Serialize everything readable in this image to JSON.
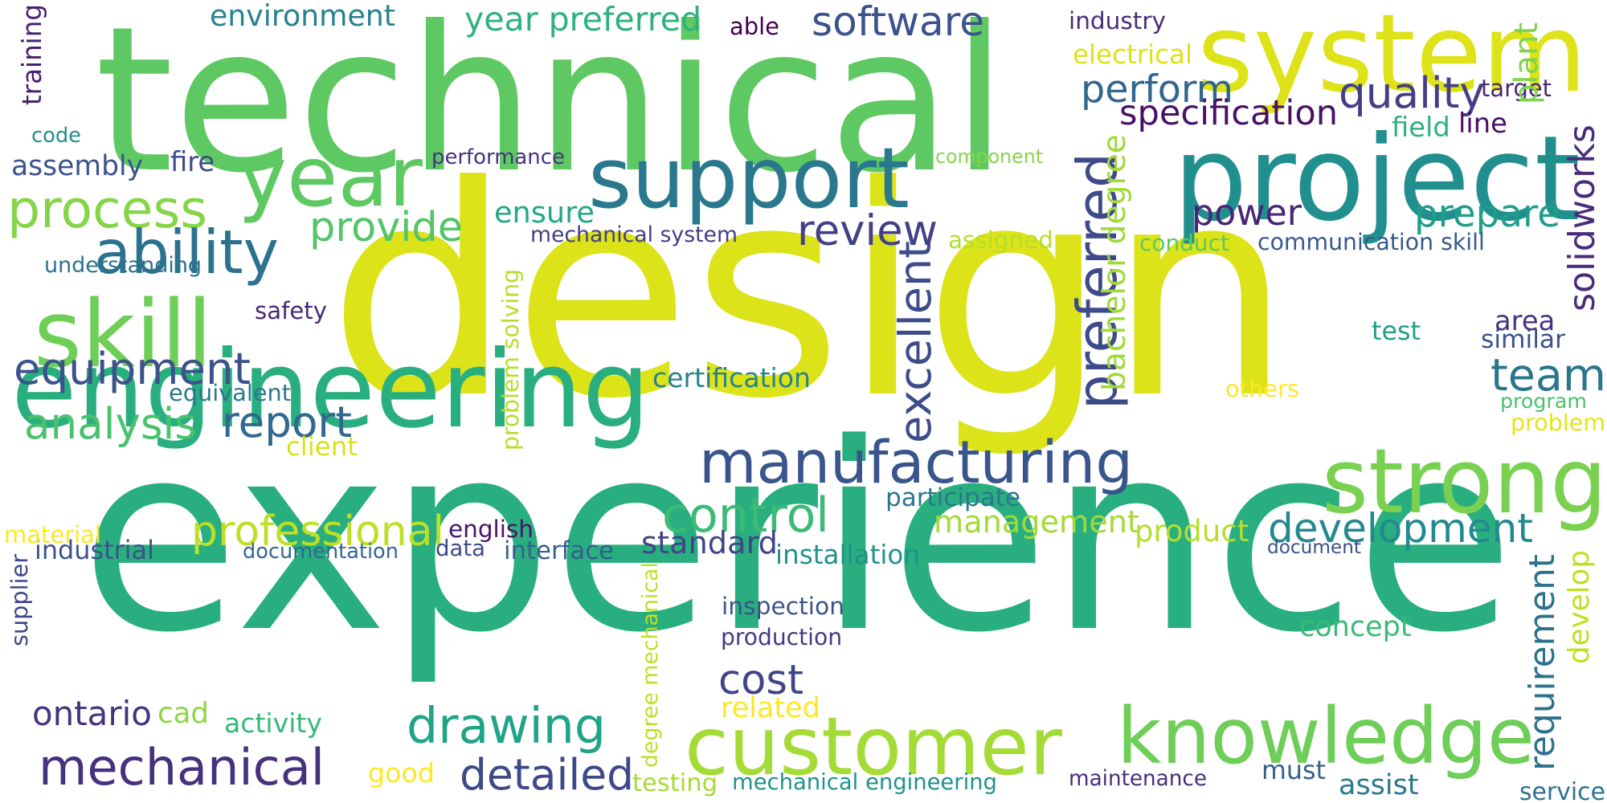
{
  "words": [
    {
      "text": "design",
      "color": "#dce319"
    },
    {
      "text": "experience",
      "color": "#29af7f"
    },
    {
      "text": "technical",
      "color": "#5ec962"
    },
    {
      "text": "engineering",
      "color": "#29af7f"
    },
    {
      "text": "project",
      "color": "#218f8d"
    },
    {
      "text": "system",
      "color": "#dde318"
    },
    {
      "text": "support",
      "color": "#2a788e"
    },
    {
      "text": "customer",
      "color": "#a5db36"
    },
    {
      "text": "knowledge",
      "color": "#6ece58"
    },
    {
      "text": "strong",
      "color": "#7ad151"
    },
    {
      "text": "manufacturing",
      "color": "#39558c"
    },
    {
      "text": "year",
      "color": "#5ec962"
    },
    {
      "text": "skill",
      "color": "#6ece58"
    },
    {
      "text": "mechanical",
      "color": "#46317e"
    },
    {
      "text": "process",
      "color": "#86d549"
    },
    {
      "text": "ability",
      "color": "#2c728e"
    },
    {
      "text": "equipment",
      "color": "#3b528b"
    },
    {
      "text": "preferred",
      "color": "#3e4a89"
    },
    {
      "text": "development",
      "color": "#23898e"
    },
    {
      "text": "solidworks",
      "color": "#472d7b"
    },
    {
      "text": "drawing",
      "color": "#20a486"
    },
    {
      "text": "excellent",
      "color": "#3e4c8a"
    },
    {
      "text": "professional",
      "color": "#bddf26"
    },
    {
      "text": "management",
      "color": "#a2da37"
    },
    {
      "text": "requirement",
      "color": "#2d718e"
    },
    {
      "text": "team",
      "color": "#2a768e"
    },
    {
      "text": "review",
      "color": "#424086"
    },
    {
      "text": "control",
      "color": "#3bbb75"
    },
    {
      "text": "detailed",
      "color": "#3e4989"
    },
    {
      "text": "quality",
      "color": "#433e85"
    },
    {
      "text": "analysis",
      "color": "#4ac16d"
    },
    {
      "text": "cost",
      "color": "#404588"
    },
    {
      "text": "prepare",
      "color": "#1f9e89"
    },
    {
      "text": "perform",
      "color": "#31668e"
    },
    {
      "text": "report",
      "color": "#31688e"
    },
    {
      "text": "power",
      "color": "#482576"
    },
    {
      "text": "provide",
      "color": "#52c569"
    },
    {
      "text": "software",
      "color": "#3b528b"
    },
    {
      "text": "specification",
      "color": "#471164"
    },
    {
      "text": "bachelor degree",
      "color": "#a0da39"
    },
    {
      "text": "product",
      "color": "#b5de2b"
    },
    {
      "text": "environment",
      "color": "#26828e"
    },
    {
      "text": "year preferred",
      "color": "#2db27d"
    },
    {
      "text": "standard",
      "color": "#414487"
    },
    {
      "text": "ontario",
      "color": "#46337f"
    },
    {
      "text": "assembly",
      "color": "#3a548c"
    },
    {
      "text": "ensure",
      "color": "#22a884"
    },
    {
      "text": "develop",
      "color": "#c2df23"
    },
    {
      "text": "must",
      "color": "#355f8d"
    },
    {
      "text": "good",
      "color": "#fde725"
    },
    {
      "text": "cad",
      "color": "#8ed645"
    },
    {
      "text": "inspection",
      "color": "#3b528b"
    },
    {
      "text": "production",
      "color": "#443983"
    },
    {
      "text": "mechanical system",
      "color": "#433e85"
    },
    {
      "text": "communication skill",
      "color": "#38598c"
    },
    {
      "text": "documentation",
      "color": "#31688e"
    },
    {
      "text": "interface",
      "color": "#355f8d"
    },
    {
      "text": "english",
      "color": "#471365"
    },
    {
      "text": "industrial",
      "color": "#3b528b"
    },
    {
      "text": "data",
      "color": "#3e4a89"
    },
    {
      "text": "installation",
      "color": "#21918c"
    },
    {
      "text": "participate",
      "color": "#2a788e"
    },
    {
      "text": "certification",
      "color": "#26828e"
    },
    {
      "text": "performance",
      "color": "#46337f"
    },
    {
      "text": "understanding",
      "color": "#2c728e"
    },
    {
      "text": "equivalent",
      "color": "#2a788e"
    },
    {
      "text": "safety",
      "color": "#482878"
    },
    {
      "text": "client",
      "color": "#d8e219"
    },
    {
      "text": "material",
      "color": "#fde725"
    },
    {
      "text": "problem solving",
      "color": "#b5de2b"
    },
    {
      "text": "degree mechanical",
      "color": "#bddf26"
    },
    {
      "text": "activity",
      "color": "#35b779"
    },
    {
      "text": "related",
      "color": "#fde725"
    },
    {
      "text": "testing",
      "color": "#a5db36"
    },
    {
      "text": "mechanical engineering",
      "color": "#21918c"
    },
    {
      "text": "maintenance",
      "color": "#472f7d"
    },
    {
      "text": "assist",
      "color": "#2a788e"
    },
    {
      "text": "service",
      "color": "#2c728e"
    },
    {
      "text": "concept",
      "color": "#3aba76"
    },
    {
      "text": "document",
      "color": "#3b528b"
    },
    {
      "text": "conduct",
      "color": "#5ec962"
    },
    {
      "text": "assigned",
      "color": "#b5de2b"
    },
    {
      "text": "component",
      "color": "#86d549"
    },
    {
      "text": "others",
      "color": "#fde725"
    },
    {
      "text": "program",
      "color": "#4ac16d"
    },
    {
      "text": "problem",
      "color": "#e5e419"
    },
    {
      "text": "test",
      "color": "#1f9e89"
    },
    {
      "text": "similar",
      "color": "#3b528b"
    },
    {
      "text": "area",
      "color": "#46337f"
    },
    {
      "text": "target",
      "color": "#482475"
    },
    {
      "text": "plant",
      "color": "#7fd34e"
    },
    {
      "text": "line",
      "color": "#471063"
    },
    {
      "text": "field",
      "color": "#2db27d"
    },
    {
      "text": "industry",
      "color": "#472d7b"
    },
    {
      "text": "electrical",
      "color": "#dde318"
    },
    {
      "text": "able",
      "color": "#440154"
    },
    {
      "text": "training",
      "color": "#482071"
    },
    {
      "text": "code",
      "color": "#21918c"
    },
    {
      "text": "fire",
      "color": "#3e4989"
    },
    {
      "text": "supplier",
      "color": "#3e4989"
    }
  ]
}
